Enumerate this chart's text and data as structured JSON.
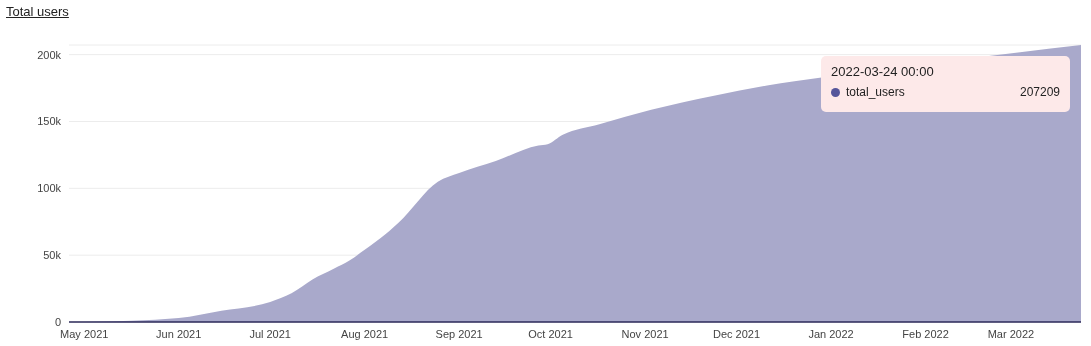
{
  "chart_data": {
    "type": "area",
    "title": "Total users",
    "x": [
      "2021-05-01",
      "2021-06-01",
      "2021-06-15",
      "2021-07-01",
      "2021-07-08",
      "2021-07-15",
      "2021-07-22",
      "2021-07-27",
      "2021-08-01",
      "2021-08-08",
      "2021-08-10",
      "2021-08-12",
      "2021-08-25",
      "2021-09-01",
      "2021-09-13",
      "2021-09-27",
      "2021-09-30",
      "2021-10-05",
      "2021-10-17",
      "2021-11-03",
      "2021-11-24",
      "2021-12-11",
      "2021-12-20",
      "2022-03-24"
    ],
    "series": [
      {
        "color": "#a9a9cb",
        "values": [
          0,
          3000,
          8400,
          15000,
          21500,
          32000,
          40000,
          46000,
          54000,
          66000,
          70000,
          74000,
          105000,
          111500,
          120500,
          132000,
          133000,
          140000,
          148000,
          158700,
          169500,
          177000,
          180000,
          207209
        ]
      }
    ],
    "xlim": [
      "2021-04-26",
      "2022-03-24"
    ],
    "xticks": [
      {
        "value": "2021-05-01",
        "label": "May 2021"
      },
      {
        "value": "2021-06-01",
        "label": "Jun 2021"
      },
      {
        "value": "2021-07-01",
        "label": "Jul 2021"
      },
      {
        "value": "2021-08-01",
        "label": "Aug 2021"
      },
      {
        "value": "2021-09-01",
        "label": "Sep 2021"
      },
      {
        "value": "2021-10-01",
        "label": "Oct 2021"
      },
      {
        "value": "2021-11-01",
        "label": "Nov 2021"
      },
      {
        "value": "2021-12-01",
        "label": "Dec 2021"
      },
      {
        "value": "2022-01-01",
        "label": "Jan 2022"
      },
      {
        "value": "2022-02-01",
        "label": "Feb 2022"
      },
      {
        "value": "2022-03-01",
        "label": "Mar 2022"
      }
    ],
    "ylim": [
      0,
      207209
    ],
    "yticks": [
      0,
      {
        "value": 50000,
        "label": "50k"
      },
      {
        "value": 100000,
        "label": "100k"
      },
      {
        "value": 150000,
        "label": "150k"
      },
      {
        "value": 200000,
        "label": "200k"
      }
    ],
    "grid": "y",
    "annotations": [
      "2022-03-24 00:00",
      "total_users",
      "207209"
    ]
  }
}
